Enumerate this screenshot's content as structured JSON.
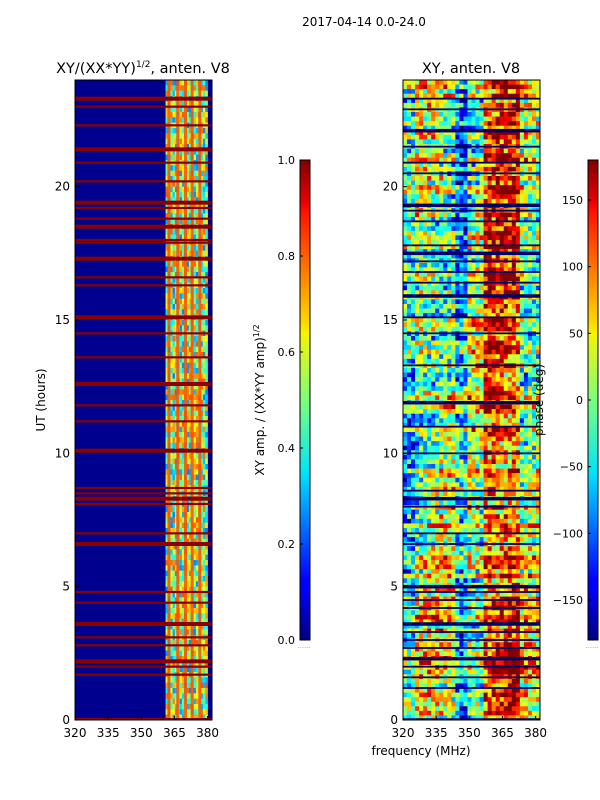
{
  "figure": {
    "suptitle": "2017-04-14 0.0-24.0",
    "xlabel": "frequency (MHz)",
    "ylabel": "UT (hours)"
  },
  "chart_data": [
    {
      "type": "heatmap",
      "title_main": "XY/(XX*YY)",
      "title_exp": "1/2",
      "title_tail": ", anten. V8",
      "x_label": "frequency (MHz)",
      "y_label": "UT (hours)",
      "xlim": [
        320,
        382
      ],
      "ylim": [
        0,
        24
      ],
      "xticks": [
        320,
        335,
        350,
        365,
        380
      ],
      "yticks": [
        0,
        5,
        10,
        15,
        20
      ],
      "colorscale": "jet",
      "colorbar": {
        "label_main": "XY amp. / (XX*YY amp)",
        "label_exp": "1/2",
        "range": [
          0.0,
          1.0
        ],
        "ticks": [
          "0.0",
          "0.2",
          "0.4",
          "0.6",
          "0.8",
          "1.0"
        ]
      },
      "saturated_rows_hours": [
        0.0,
        1.7,
        2.0,
        2.2,
        2.8,
        3.1,
        3.6,
        4.4,
        4.8,
        6.6,
        7.0,
        8.1,
        8.3,
        8.5,
        8.7,
        10.1,
        11.2,
        11.8,
        12.6,
        13.6,
        14.5,
        15.1,
        16.3,
        16.6,
        17.3,
        17.9,
        18.0,
        18.5,
        18.8,
        19.2,
        19.4,
        20.2,
        20.9,
        21.4,
        22.3,
        23.0,
        23.3
      ],
      "high_amplitude_band_MHz": [
        361,
        380
      ],
      "bright_channels_MHz": [
        362.5,
        366.5,
        370,
        373,
        376.5
      ]
    },
    {
      "type": "heatmap",
      "title": "XY, anten. V8",
      "x_label": "frequency (MHz)",
      "y_label": "",
      "xlim": [
        320,
        382
      ],
      "ylim": [
        0,
        24
      ],
      "xticks": [
        320,
        335,
        350,
        365,
        380
      ],
      "yticks": [
        0,
        5,
        10,
        15,
        20
      ],
      "colorscale": "jet",
      "colorbar": {
        "label": "phase (deg)",
        "range": [
          -180,
          180
        ],
        "ticks": [
          "150",
          "100",
          "50",
          "0",
          "−50",
          "−100",
          "−150"
        ]
      },
      "dark_rows_hours": [
        0.0,
        1.2,
        1.6,
        2.0,
        2.3,
        2.7,
        3.0,
        3.3,
        3.6,
        4.2,
        4.5,
        4.8,
        5.0,
        6.6,
        7.0,
        8.0,
        8.3,
        8.6,
        10.0,
        11.0,
        11.9,
        13.3,
        14.5,
        15.1,
        15.9,
        16.4,
        16.8,
        17.2,
        17.5,
        17.8,
        18.7,
        19.1,
        19.3,
        20.5,
        20.9,
        21.5,
        22.1,
        22.9,
        23.3
      ]
    }
  ]
}
